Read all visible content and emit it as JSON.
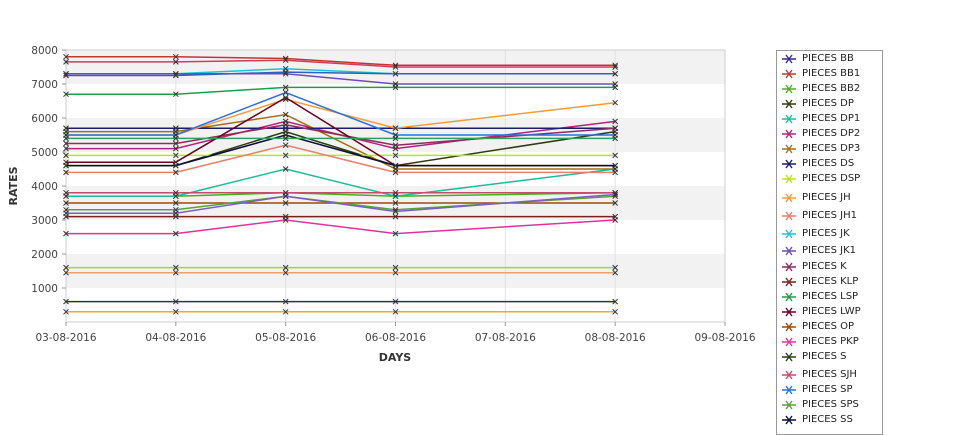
{
  "chart_data": {
    "type": "line",
    "xlabel": "DAYS",
    "ylabel": "RATES",
    "x_ticks": [
      "03-08-2016",
      "04-08-2016",
      "05-08-2016",
      "06-08-2016",
      "07-08-2016",
      "08-08-2016",
      "09-08-2016"
    ],
    "xlim": [
      "03-08-2016",
      "09-08-2016"
    ],
    "ylim": [
      0,
      8000
    ],
    "y_ticks": [
      1000,
      2000,
      3000,
      4000,
      5000,
      6000,
      7000,
      8000
    ],
    "grid": true,
    "legend_position": "right",
    "series": [
      {
        "name": "PIECES BB",
        "color": "#2b2b9c",
        "x": [
          "03-08-2016",
          "04-08-2016",
          "05-08-2016",
          "06-08-2016",
          "08-08-2016"
        ],
        "y": [
          5700,
          5700,
          5700,
          5700,
          5700
        ]
      },
      {
        "name": "PIECES BB1",
        "color": "#c0392b",
        "x": [
          "03-08-2016",
          "04-08-2016",
          "05-08-2016",
          "06-08-2016",
          "08-08-2016"
        ],
        "y": [
          7800,
          7800,
          7750,
          7550,
          7550
        ]
      },
      {
        "name": "PIECES BB2",
        "color": "#4caf1a",
        "x": [
          "03-08-2016",
          "04-08-2016",
          "05-08-2016",
          "06-08-2016",
          "08-08-2016"
        ],
        "y": [
          3700,
          3700,
          3800,
          3700,
          3800
        ]
      },
      {
        "name": "PIECES DP",
        "color": "#2e3b0e",
        "x": [
          "03-08-2016",
          "04-08-2016",
          "05-08-2016",
          "06-08-2016",
          "08-08-2016"
        ],
        "y": [
          4600,
          4600,
          5600,
          4600,
          5600
        ]
      },
      {
        "name": "PIECES DP1",
        "color": "#1abc9c",
        "x": [
          "03-08-2016",
          "04-08-2016",
          "05-08-2016",
          "06-08-2016",
          "08-08-2016"
        ],
        "y": [
          3700,
          3700,
          4500,
          3700,
          4500
        ]
      },
      {
        "name": "PIECES DP2",
        "color": "#b0247a",
        "x": [
          "03-08-2016",
          "04-08-2016",
          "05-08-2016",
          "06-08-2016",
          "08-08-2016"
        ],
        "y": [
          5100,
          5100,
          5900,
          5100,
          5900
        ]
      },
      {
        "name": "PIECES DP3",
        "color": "#a07015",
        "x": [
          "03-08-2016",
          "04-08-2016",
          "05-08-2016",
          "06-08-2016",
          "08-08-2016"
        ],
        "y": [
          5600,
          5600,
          6100,
          4500,
          4500
        ]
      },
      {
        "name": "PIECES DS",
        "color": "#1c1c6e",
        "x": [
          "03-08-2016",
          "04-08-2016",
          "05-08-2016",
          "06-08-2016",
          "08-08-2016"
        ],
        "y": [
          5700,
          5700,
          5700,
          5700,
          5700
        ]
      },
      {
        "name": "PIECES DSP",
        "color": "#b5e61d",
        "x": [
          "03-08-2016",
          "04-08-2016",
          "05-08-2016",
          "06-08-2016",
          "08-08-2016"
        ],
        "y": [
          4900,
          4900,
          4900,
          4900,
          4900
        ]
      },
      {
        "name": "PIECES JH",
        "color": "#f39c34",
        "x": [
          "03-08-2016",
          "04-08-2016",
          "05-08-2016",
          "06-08-2016",
          "08-08-2016"
        ],
        "y": [
          5500,
          5500,
          6550,
          5700,
          6450
        ]
      },
      {
        "name": "PIECES JH1",
        "color": "#e8806a",
        "x": [
          "03-08-2016",
          "04-08-2016",
          "05-08-2016",
          "06-08-2016",
          "08-08-2016"
        ],
        "y": [
          4400,
          4400,
          5200,
          4400,
          4400
        ]
      },
      {
        "name": "PIECES JK",
        "color": "#22c0d4",
        "x": [
          "03-08-2016",
          "04-08-2016",
          "05-08-2016",
          "06-08-2016",
          "08-08-2016"
        ],
        "y": [
          7300,
          7300,
          7450,
          7300,
          7300
        ]
      },
      {
        "name": "PIECES JK1",
        "color": "#6a4fb6",
        "x": [
          "03-08-2016",
          "04-08-2016",
          "05-08-2016",
          "06-08-2016",
          "08-08-2016"
        ],
        "y": [
          7300,
          7300,
          7300,
          7000,
          7000
        ]
      },
      {
        "name": "PIECES K",
        "color": "#8e2a5e",
        "x": [
          "03-08-2016",
          "04-08-2016",
          "05-08-2016",
          "06-08-2016",
          "08-08-2016"
        ],
        "y": [
          5250,
          5250,
          5800,
          5200,
          5700
        ]
      },
      {
        "name": "PIECES KLP",
        "color": "#7b1f1f",
        "x": [
          "03-08-2016",
          "04-08-2016",
          "05-08-2016",
          "06-08-2016",
          "08-08-2016"
        ],
        "y": [
          3100,
          3100,
          3100,
          3100,
          3100
        ]
      },
      {
        "name": "PIECES LSP",
        "color": "#1b9e4b",
        "x": [
          "03-08-2016",
          "04-08-2016",
          "05-08-2016",
          "06-08-2016",
          "08-08-2016"
        ],
        "y": [
          6700,
          6700,
          6900,
          6900,
          6900
        ]
      },
      {
        "name": "PIECES LWP",
        "color": "#6b0020",
        "x": [
          "03-08-2016",
          "04-08-2016",
          "05-08-2016",
          "06-08-2016",
          "08-08-2016"
        ],
        "y": [
          4700,
          4700,
          6600,
          4600,
          4600
        ]
      },
      {
        "name": "PIECES OP",
        "color": "#9a4a0c",
        "x": [
          "03-08-2016",
          "04-08-2016",
          "05-08-2016",
          "06-08-2016",
          "08-08-2016"
        ],
        "y": [
          3500,
          3500,
          3500,
          3500,
          3500
        ]
      },
      {
        "name": "PIECES PKP",
        "color": "#e0329a",
        "x": [
          "03-08-2016",
          "04-08-2016",
          "05-08-2016",
          "06-08-2016",
          "08-08-2016"
        ],
        "y": [
          2600,
          2600,
          3000,
          2600,
          3000
        ]
      },
      {
        "name": "PIECES S",
        "color": "#2a3e10",
        "x": [
          "03-08-2016",
          "04-08-2016",
          "05-08-2016",
          "06-08-2016",
          "08-08-2016"
        ],
        "y": [
          600,
          600,
          600,
          600,
          600
        ]
      },
      {
        "name": "PIECES SJH",
        "color": "#c44d6c",
        "x": [
          "03-08-2016",
          "04-08-2016",
          "05-08-2016",
          "06-08-2016",
          "08-08-2016"
        ],
        "y": [
          3800,
          3800,
          3800,
          3800,
          3800
        ]
      },
      {
        "name": "PIECES SP",
        "color": "#2a6fdc",
        "x": [
          "03-08-2016",
          "04-08-2016",
          "05-08-2016",
          "06-08-2016",
          "08-08-2016"
        ],
        "y": [
          5500,
          5500,
          6750,
          5500,
          5500
        ]
      },
      {
        "name": "PIECES SPS",
        "color": "#5aa13a",
        "x": [
          "03-08-2016",
          "04-08-2016",
          "05-08-2016",
          "06-08-2016",
          "08-08-2016"
        ],
        "y": [
          3300,
          3300,
          3700,
          3300,
          3700
        ]
      },
      {
        "name": "PIECES SS",
        "color": "#0d0d3a",
        "x": [
          "03-08-2016",
          "04-08-2016",
          "05-08-2016",
          "06-08-2016",
          "08-08-2016"
        ],
        "y": [
          4600,
          4600,
          5500,
          4600,
          4600
        ]
      },
      {
        "name": "",
        "color": "#f1a340",
        "x": [
          "03-08-2016",
          "04-08-2016",
          "05-08-2016",
          "06-08-2016",
          "08-08-2016"
        ],
        "y": [
          300,
          300,
          300,
          300,
          300
        ]
      },
      {
        "name": "",
        "color": "#a8d23a",
        "x": [
          "03-08-2016",
          "04-08-2016",
          "05-08-2016",
          "06-08-2016",
          "08-08-2016"
        ],
        "y": [
          1600,
          1600,
          1600,
          1600,
          1600
        ]
      },
      {
        "name": "",
        "color": "#e8a070",
        "x": [
          "03-08-2016",
          "04-08-2016",
          "05-08-2016",
          "06-08-2016",
          "08-08-2016"
        ],
        "y": [
          1450,
          1450,
          1450,
          1450,
          1450
        ]
      },
      {
        "name": "",
        "color": "#7a5fc0",
        "x": [
          "03-08-2016",
          "04-08-2016",
          "05-08-2016",
          "06-08-2016",
          "08-08-2016"
        ],
        "y": [
          3200,
          3200,
          3700,
          3250,
          3750
        ]
      },
      {
        "name": "",
        "color": "#30a060",
        "x": [
          "03-08-2016",
          "04-08-2016",
          "05-08-2016",
          "06-08-2016",
          "08-08-2016"
        ],
        "y": [
          5400,
          5400,
          5400,
          5400,
          5400
        ]
      },
      {
        "name": "",
        "color": "#3060c0",
        "x": [
          "03-08-2016",
          "04-08-2016",
          "05-08-2016",
          "06-08-2016",
          "08-08-2016"
        ],
        "y": [
          7250,
          7250,
          7350,
          7300,
          7300
        ]
      },
      {
        "name": "",
        "color": "#d63a5a",
        "x": [
          "03-08-2016",
          "04-08-2016",
          "05-08-2016",
          "06-08-2016",
          "08-08-2016"
        ],
        "y": [
          7650,
          7650,
          7700,
          7500,
          7500
        ]
      }
    ]
  }
}
